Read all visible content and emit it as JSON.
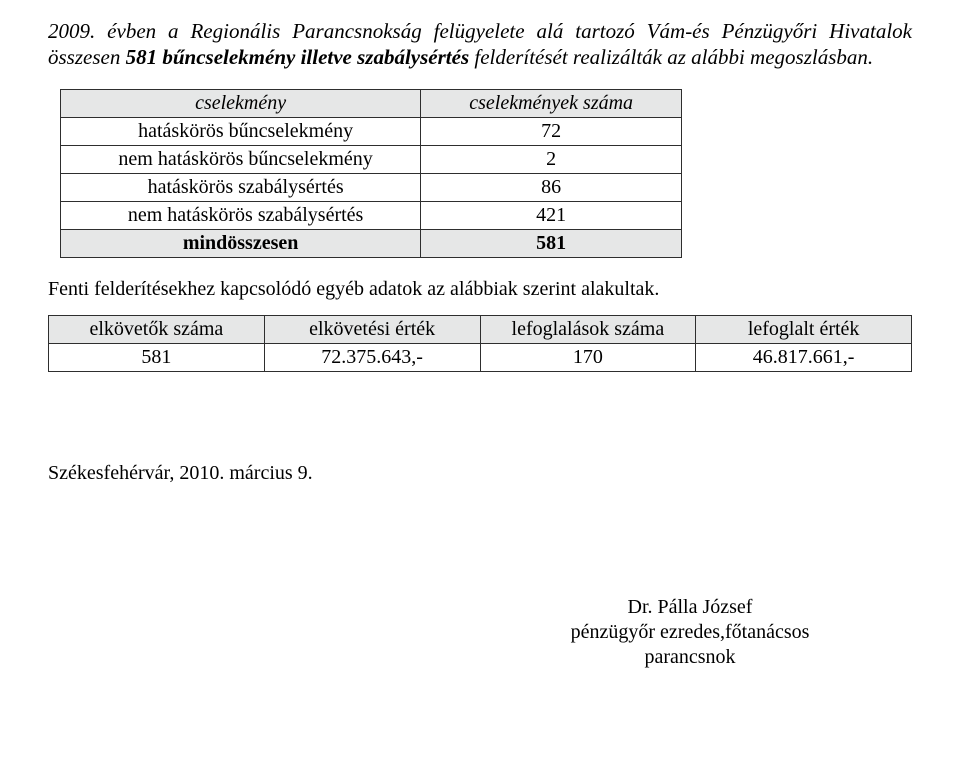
{
  "intro": {
    "pre": "2009. évben a Regionális Parancsnokság felügyelete alá tartozó Vám-és Pénzügyőri Hivatalok összesen ",
    "bold": "581 bűncselekmény illetve szabálysértés",
    "post": " felderítését realizálták az alábbi megoszlásban."
  },
  "crime_table": {
    "columns": [
      "cselekmény",
      "cselekmények száma"
    ],
    "col_widths": [
      "58%",
      "42%"
    ],
    "rows": [
      [
        "hatáskörös bűncselekmény",
        "72"
      ],
      [
        "nem hatáskörös bűncselekmény",
        "2"
      ],
      [
        "hatáskörös szabálysértés",
        "86"
      ],
      [
        "nem hatáskörös szabálysértés",
        "421"
      ]
    ],
    "total": [
      "mindösszesen",
      "581"
    ],
    "header_bg": "#e6e7e7",
    "border_color": "#2e2e2e",
    "font_size": 20
  },
  "between_text": "Fenti felderítésekhez kapcsolódó egyéb adatok az alábbiak szerint alakultak.",
  "seize_table": {
    "columns": [
      "elkövetők száma",
      "elkövetési érték",
      "lefoglalások száma",
      "lefoglalt érték"
    ],
    "row": [
      "581",
      "72.375.643,-",
      "170",
      "46.817.661,-"
    ],
    "header_bg": "#e6e7e7",
    "border_color": "#2e2e2e",
    "font_size": 20
  },
  "date_place": "Székesfehérvár, 2010. március 9.",
  "signature": {
    "name": "Dr. Pálla József",
    "title": "pénzügyőr ezredes,főtanácsos",
    "role": "parancsnok"
  },
  "background_color": "#ffffff",
  "text_color": "#000000"
}
